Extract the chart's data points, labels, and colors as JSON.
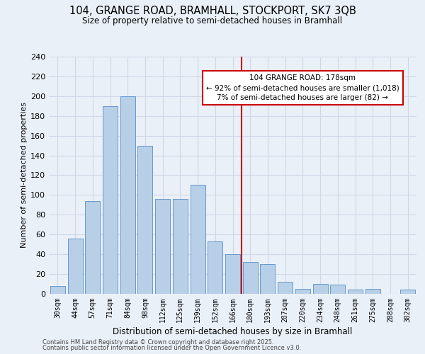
{
  "title_line1": "104, GRANGE ROAD, BRAMHALL, STOCKPORT, SK7 3QB",
  "title_line2": "Size of property relative to semi-detached houses in Bramhall",
  "xlabel": "Distribution of semi-detached houses by size in Bramhall",
  "ylabel": "Number of semi-detached properties",
  "categories": [
    "30sqm",
    "44sqm",
    "57sqm",
    "71sqm",
    "84sqm",
    "98sqm",
    "112sqm",
    "125sqm",
    "139sqm",
    "152sqm",
    "166sqm",
    "180sqm",
    "193sqm",
    "207sqm",
    "220sqm",
    "234sqm",
    "248sqm",
    "261sqm",
    "275sqm",
    "288sqm",
    "302sqm"
  ],
  "values": [
    8,
    56,
    94,
    190,
    200,
    150,
    96,
    96,
    110,
    53,
    40,
    32,
    30,
    12,
    5,
    10,
    9,
    4,
    5,
    0,
    4
  ],
  "bar_color": "#b8cfe8",
  "bar_edge_color": "#6699cc",
  "vline_x_index": 11,
  "marker_label_line1": "104 GRANGE ROAD: 178sqm",
  "marker_label_line2": "← 92% of semi-detached houses are smaller (1,018)",
  "marker_label_line3": "7% of semi-detached houses are larger (82) →",
  "annotation_box_color": "#ffffff",
  "annotation_box_edge": "#cc0000",
  "vline_color": "#cc0000",
  "ylim": [
    0,
    240
  ],
  "yticks": [
    0,
    20,
    40,
    60,
    80,
    100,
    120,
    140,
    160,
    180,
    200,
    220,
    240
  ],
  "grid_color": "#d0d8e8",
  "background_color": "#eaf0f8",
  "footer_line1": "Contains HM Land Registry data © Crown copyright and database right 2025.",
  "footer_line2": "Contains public sector information licensed under the Open Government Licence v3.0."
}
